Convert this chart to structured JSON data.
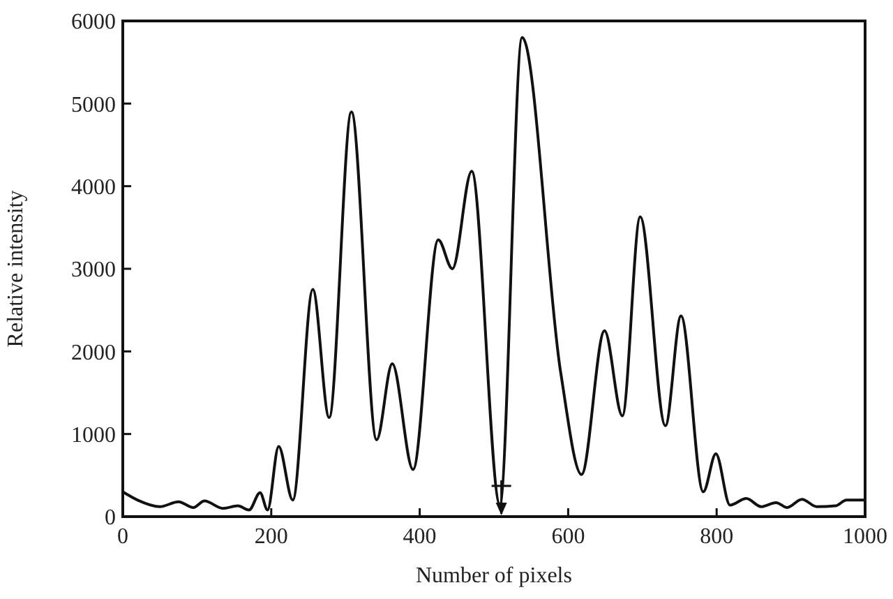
{
  "chart_data": {
    "type": "line",
    "xlabel": "Number of pixels",
    "ylabel": "Relative intensity",
    "xlim": [
      0,
      1000
    ],
    "ylim": [
      0,
      6000
    ],
    "xticks": [
      0,
      200,
      400,
      600,
      800,
      1000
    ],
    "yticks": [
      0,
      1000,
      2000,
      3000,
      4000,
      5000,
      6000
    ],
    "grid": false,
    "marker": "none",
    "line_style": "solid",
    "series": [
      {
        "color": "#111111",
        "x": [
          0,
          20,
          50,
          75,
          95,
          110,
          135,
          155,
          170,
          185,
          195,
          210,
          229,
          256,
          278,
          308,
          342,
          363,
          391,
          425,
          444,
          470,
          508,
          538,
          590,
          618,
          649,
          673,
          697,
          731,
          752,
          782,
          799,
          818,
          840,
          860,
          880,
          895,
          915,
          935,
          960,
          975,
          1000
        ],
        "values": [
          300,
          200,
          120,
          180,
          110,
          190,
          100,
          130,
          80,
          290,
          80,
          850,
          200,
          2750,
          1200,
          4900,
          930,
          1850,
          570,
          3350,
          3000,
          4180,
          150,
          5800,
          1740,
          510,
          2250,
          1220,
          3630,
          1100,
          2430,
          300,
          760,
          140,
          220,
          120,
          170,
          110,
          210,
          120,
          130,
          200,
          200
        ]
      }
    ]
  }
}
